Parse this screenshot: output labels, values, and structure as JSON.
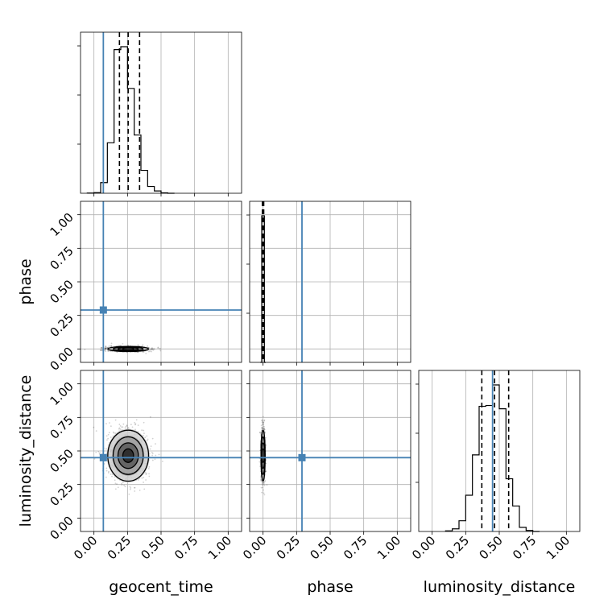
{
  "chart_data": {
    "type": "corner",
    "parameters": [
      "geocent_time",
      "phase",
      "luminosity_distance"
    ],
    "axis_labels": {
      "x": [
        "geocent_time",
        "phase",
        "luminosity_distance"
      ],
      "y": [
        "phase",
        "luminosity_distance"
      ]
    },
    "tick_values": [
      0.0,
      0.25,
      0.5,
      0.75,
      1.0
    ],
    "tick_labels": [
      "0.00",
      "0.25",
      "0.50",
      "0.75",
      "1.00"
    ],
    "xlim": [
      -0.1,
      1.1
    ],
    "ylim": [
      -0.1,
      1.1
    ],
    "grid": true,
    "truths": [
      0.07,
      0.29,
      0.45
    ],
    "truth_color": "#4682b4",
    "quantile_lines": [
      [
        0.19,
        0.255,
        0.34
      ],
      [
        -0.005,
        0.0,
        0.005
      ],
      [
        0.37,
        0.465,
        0.57
      ]
    ],
    "histograms": [
      {
        "parameter": "geocent_time",
        "bins": [
          -0.05,
          0.0,
          0.05,
          0.1,
          0.15,
          0.2,
          0.25,
          0.3,
          0.35,
          0.4,
          0.45,
          0.5,
          0.55,
          0.6
        ],
        "counts": [
          1,
          3,
          55,
          260,
          740,
          755,
          540,
          300,
          118,
          35,
          12,
          2,
          0
        ]
      },
      {
        "parameter": "phase",
        "bins": [
          -0.02,
          -0.01,
          0.0,
          0.01,
          0.02
        ],
        "counts": [
          0,
          1000,
          1000,
          0
        ]
      },
      {
        "parameter": "luminosity_distance",
        "bins": [
          0.1,
          0.15,
          0.2,
          0.25,
          0.3,
          0.35,
          0.4,
          0.45,
          0.5,
          0.55,
          0.6,
          0.65,
          0.7,
          0.75,
          0.8
        ],
        "counts": [
          4,
          16,
          65,
          220,
          465,
          760,
          765,
          890,
          745,
          320,
          155,
          25,
          6,
          0
        ]
      }
    ],
    "density_2d": [
      {
        "x": "geocent_time",
        "y": "phase",
        "x_center": 0.255,
        "y_center": 0.0,
        "x_spread": 0.08,
        "y_spread": 0.01
      },
      {
        "x": "geocent_time",
        "y": "luminosity_distance",
        "x_center": 0.255,
        "y_center": 0.465,
        "x_spread": 0.08,
        "y_spread": 0.1
      },
      {
        "x": "phase",
        "y": "luminosity_distance",
        "x_center": 0.0,
        "y_center": 0.465,
        "x_spread": 0.008,
        "y_spread": 0.1
      }
    ]
  }
}
